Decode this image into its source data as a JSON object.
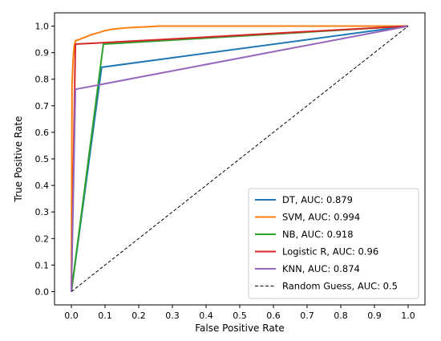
{
  "chart_data": {
    "type": "line",
    "title": "",
    "xlabel": "False Positive Rate",
    "ylabel": "True Positive Rate",
    "xlim": [
      -0.05,
      1.05
    ],
    "ylim": [
      -0.05,
      1.05
    ],
    "xticks": [
      0.0,
      0.1,
      0.2,
      0.3,
      0.4,
      0.5,
      0.6,
      0.7,
      0.8,
      0.9,
      1.0
    ],
    "yticks": [
      0.0,
      0.1,
      0.2,
      0.3,
      0.4,
      0.5,
      0.6,
      0.7,
      0.8,
      0.9,
      1.0
    ],
    "xtick_labels": [
      "0.0",
      "0.1",
      "0.2",
      "0.3",
      "0.4",
      "0.5",
      "0.6",
      "0.7",
      "0.8",
      "0.9",
      "1.0"
    ],
    "ytick_labels": [
      "0.0",
      "0.1",
      "0.2",
      "0.3",
      "0.4",
      "0.5",
      "0.6",
      "0.7",
      "0.8",
      "0.9",
      "1.0"
    ],
    "grid": false,
    "legend_position": "lower-right",
    "series": [
      {
        "name": "DT, AUC: 0.879",
        "color": "#1f77b4",
        "style": "solid",
        "points": [
          [
            0.0,
            0.0
          ],
          [
            0.09,
            0.845
          ],
          [
            1.0,
            1.0
          ]
        ]
      },
      {
        "name": "SVM, AUC: 0.994",
        "color": "#ff7f0e",
        "style": "solid",
        "points": [
          [
            0.0,
            0.0
          ],
          [
            0.002,
            0.78
          ],
          [
            0.005,
            0.87
          ],
          [
            0.008,
            0.92
          ],
          [
            0.012,
            0.945
          ],
          [
            0.02,
            0.948
          ],
          [
            0.03,
            0.953
          ],
          [
            0.04,
            0.958
          ],
          [
            0.05,
            0.963
          ],
          [
            0.06,
            0.968
          ],
          [
            0.08,
            0.975
          ],
          [
            0.1,
            0.983
          ],
          [
            0.12,
            0.988
          ],
          [
            0.15,
            0.992
          ],
          [
            0.18,
            0.995
          ],
          [
            0.22,
            0.997
          ],
          [
            0.26,
            1.0
          ],
          [
            1.0,
            1.0
          ]
        ]
      },
      {
        "name": "NB, AUC: 0.918",
        "color": "#2ca02c",
        "style": "solid",
        "points": [
          [
            0.0,
            0.0
          ],
          [
            0.095,
            0.932
          ],
          [
            1.0,
            1.0
          ]
        ]
      },
      {
        "name": "Logistic R, AUC: 0.96",
        "color": "#d62728",
        "style": "solid",
        "points": [
          [
            0.0,
            0.0
          ],
          [
            0.012,
            0.932
          ],
          [
            1.0,
            1.0
          ]
        ]
      },
      {
        "name": "KNN, AUC: 0.874",
        "color": "#9467bd",
        "style": "solid",
        "points": [
          [
            0.0,
            0.0
          ],
          [
            0.012,
            0.762
          ],
          [
            1.0,
            1.0
          ]
        ]
      },
      {
        "name": "Random Guess, AUC: 0.5",
        "color": "#000000",
        "style": "dashed",
        "points": [
          [
            0.0,
            0.0
          ],
          [
            1.0,
            1.0
          ]
        ]
      }
    ]
  }
}
